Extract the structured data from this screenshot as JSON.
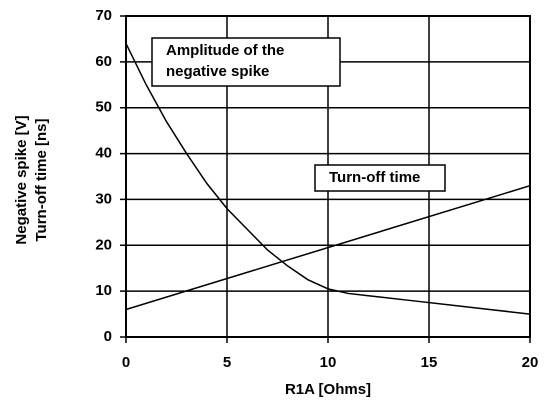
{
  "chart_data": {
    "type": "line",
    "xlabel": "R1A [Ohms]",
    "ylabel": [
      "Negative spike [V]",
      "Turn-off time [ns]"
    ],
    "xlim": [
      0,
      20
    ],
    "xticks": [
      0,
      5,
      10,
      15,
      20
    ],
    "ylim": [
      0,
      70
    ],
    "yticks": [
      0,
      10,
      20,
      30,
      40,
      50,
      60,
      70
    ],
    "grid": true,
    "annotations": [
      [
        "Amplitude of the",
        "negative spike"
      ],
      [
        "Turn-off time"
      ]
    ],
    "series": [
      {
        "color": "#000000",
        "x": [
          0,
          1,
          2,
          3,
          4,
          5,
          6,
          7,
          8,
          9,
          10,
          11,
          12,
          14,
          16,
          18,
          20
        ],
        "values": [
          64,
          55,
          47,
          40,
          33.5,
          28,
          23.5,
          19,
          15.5,
          12.5,
          10.5,
          9.5,
          9,
          8,
          7,
          6,
          5
        ]
      },
      {
        "color": "#000000",
        "x": [
          0,
          20
        ],
        "values": [
          6,
          33
        ]
      }
    ]
  }
}
